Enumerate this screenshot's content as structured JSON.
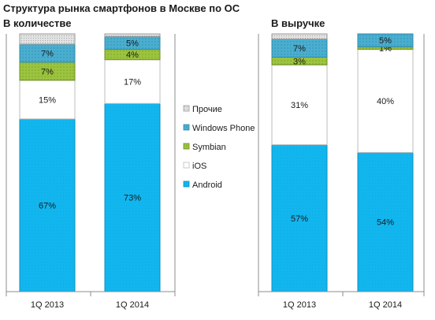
{
  "title": "Структура рынка смартфонов в Москве  по ОС",
  "left_panel_title": "В количестве",
  "right_panel_title": "В выручке",
  "chart_data": {
    "type": "bar",
    "stacked": true,
    "normalized_percent": true,
    "categories": [
      "1Q 2013",
      "1Q 2014",
      "1Q 2013",
      "1Q 2014"
    ],
    "groups": [
      {
        "title": "В количестве",
        "category_indices": [
          0,
          1
        ]
      },
      {
        "title": "В выручке",
        "category_indices": [
          2,
          3
        ]
      }
    ],
    "series": [
      {
        "name": "Android",
        "color": "#11b4ec",
        "values": [
          67,
          73,
          57,
          54
        ],
        "labels": [
          "67%",
          "73%",
          "57%",
          "54%"
        ]
      },
      {
        "name": "iOS",
        "color": "#ffffff",
        "values": [
          15,
          17,
          31,
          40
        ],
        "labels": [
          "15%",
          "17%",
          "31%",
          "40%"
        ]
      },
      {
        "name": "Symbian",
        "color": "#97bd3c",
        "values": [
          7,
          4,
          3,
          1
        ],
        "labels": [
          "7%",
          "4%",
          "3%",
          "1%"
        ]
      },
      {
        "name": "Windows Phone",
        "color": "#45a9c9",
        "values": [
          7,
          5,
          7,
          5
        ],
        "labels": [
          "7%",
          "5%",
          "7%",
          "5%"
        ]
      },
      {
        "name": "Прочие",
        "color": "#d6d6d6",
        "values": [
          4,
          1,
          2,
          0
        ],
        "labels": [
          "",
          "",
          "",
          ""
        ]
      }
    ],
    "legend": {
      "placement": "center",
      "order": [
        "Прочие",
        "Windows Phone",
        "Symbian",
        "iOS",
        "Android"
      ]
    },
    "ylim": [
      0,
      100
    ],
    "grid": false,
    "xlabel": "",
    "ylabel": ""
  }
}
